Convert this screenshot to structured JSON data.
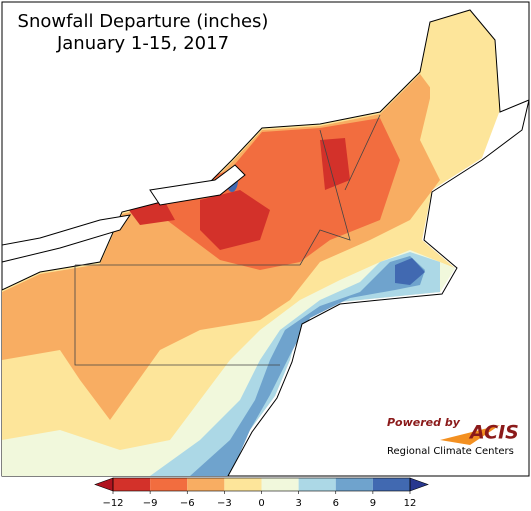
{
  "title": "Snowfall Departure (inches)",
  "subtitle": "January 1-15, 2017",
  "colorbar": {
    "ticks": [
      {
        "value": -12,
        "label": "−12"
      },
      {
        "value": -9,
        "label": "−9"
      },
      {
        "value": -6,
        "label": "−6"
      },
      {
        "value": -3,
        "label": "−3"
      },
      0,
      3,
      6,
      9,
      12
    ],
    "colors": [
      "#d3312a",
      "#f26d3f",
      "#f8ad62",
      "#fde59a",
      "#f1f8dc",
      "#acd8e6",
      "#6fa3cd",
      "#4169b1"
    ],
    "extend_colors": [
      "#b0131f",
      "#28378f"
    ]
  },
  "logo": {
    "tagline": "Powered by",
    "name": "ACIS",
    "org": "Regional Climate Centers"
  }
}
